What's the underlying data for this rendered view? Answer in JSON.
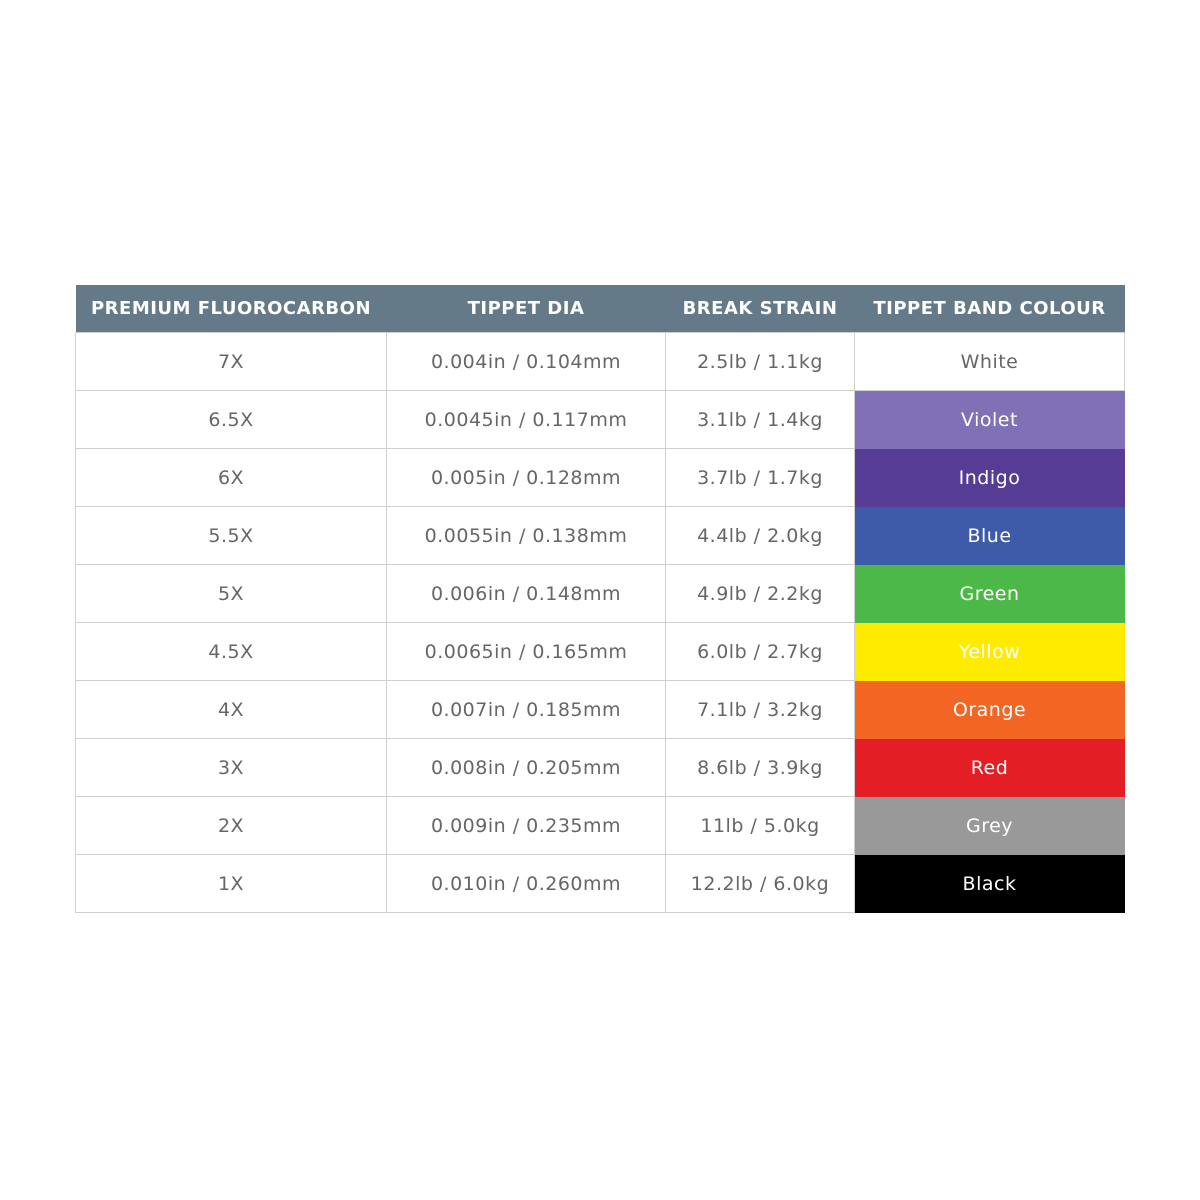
{
  "table": {
    "header": [
      "PREMIUM FLUOROCARBON",
      "TIPPET DIA",
      "BREAK STRAIN",
      "TIPPET BAND COLOUR"
    ],
    "header_color": "#647a89",
    "rows": [
      [
        "7X",
        "0.004in / 0.104mm",
        "2.5lb / 1.1kg",
        "White"
      ],
      [
        "6.5X",
        "0.0045in / 0.117mm",
        "3.1lb / 1.4kg",
        "Violet"
      ],
      [
        "6X",
        "0.005in / 0.128mm",
        "3.7lb / 1.7kg",
        "Indigo"
      ],
      [
        "5.5X",
        "0.0055in / 0.138mm",
        "4.4lb / 2.0kg",
        "Blue"
      ],
      [
        "5X",
        "0.006in / 0.148mm",
        "4.9lb / 2.2kg",
        "Green"
      ],
      [
        "4.5X",
        "0.0065in / 0.165mm",
        "6.0lb / 2.7kg",
        "Yellow"
      ],
      [
        "4X",
        "0.007in / 0.185mm",
        "7.1lb / 3.2kg",
        "Orange"
      ],
      [
        "3X",
        "0.008in / 0.205mm",
        "8.6lb / 3.9kg",
        "Red"
      ],
      [
        "2X",
        "0.009in / 0.235mm",
        "11lb / 5.0kg",
        "Grey"
      ],
      [
        "1X",
        "0.010in / 0.260mm",
        "12.2lb / 6.0kg",
        "Black"
      ]
    ],
    "band_colors": [
      "#ffffff",
      "#8070b5",
      "#573c96",
      "#3d5ba8",
      "#4cb848",
      "#ffeb00",
      "#f26522",
      "#e31e25",
      "#999999",
      "#000000"
    ],
    "band_text_colors": [
      "#666666",
      "#ffffff",
      "#ffffff",
      "#ffffff",
      "#ffffff",
      "#ffffff",
      "#ffffff",
      "#ffffff",
      "#ffffff",
      "#ffffff"
    ]
  }
}
